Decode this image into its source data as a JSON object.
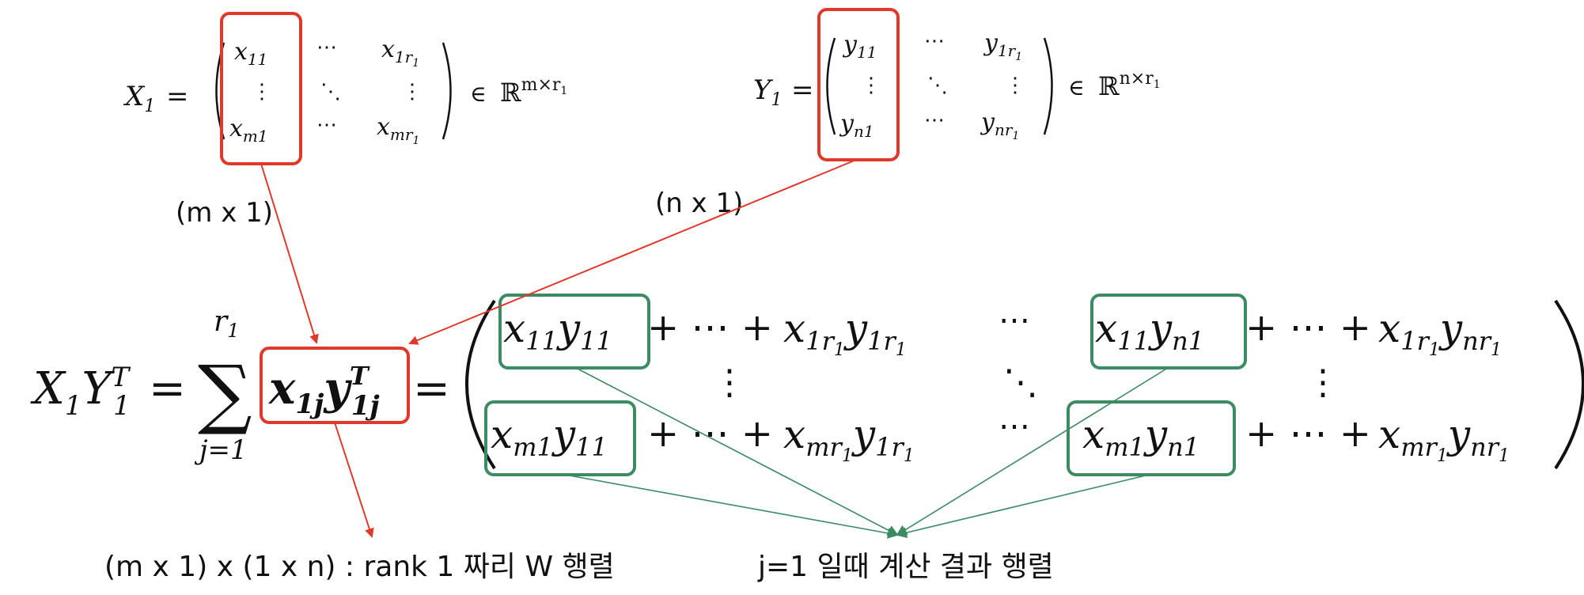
{
  "matrix_x": {
    "name": "X",
    "name_sub": "1",
    "equals": "=",
    "top_left": {
      "base": "x",
      "sub": "11"
    },
    "top_right": {
      "base": "x",
      "sub": "1r",
      "subsub": "1"
    },
    "bottom_left": {
      "base": "x",
      "sub": "m1"
    },
    "bottom_right": {
      "base": "x",
      "sub": "mr",
      "subsub": "1"
    },
    "hdots": "⋯",
    "vdots": "⋮",
    "ddots": "⋱",
    "member_of": "∈",
    "space": "ℝ",
    "space_sup": "m×r",
    "space_sup_sub": "1"
  },
  "matrix_y": {
    "name": "Y",
    "name_sub": "1",
    "equals": "=",
    "top_left": {
      "base": "y",
      "sub": "11"
    },
    "top_right": {
      "base": "y",
      "sub": "1r",
      "subsub": "1"
    },
    "bottom_left": {
      "base": "y",
      "sub": "n1"
    },
    "bottom_right": {
      "base": "y",
      "sub": "nr",
      "subsub": "1"
    },
    "hdots": "⋯",
    "vdots": "⋮",
    "ddots": "⋱",
    "member_of": "∈",
    "space": "ℝ",
    "space_sup": "n×r",
    "space_sup_sub": "1"
  },
  "labels": {
    "x_column_dim": "(m x 1)",
    "y_column_dim": "(n x 1)",
    "rank1_caption": "(m x 1) x (1 x n) : rank 1 짜리 W 행렬",
    "result_caption": "j=1 일때 계산 결과 행렬"
  },
  "main_equation": {
    "lhs_x": "X",
    "lhs_x_sub": "1",
    "lhs_y": "Y",
    "lhs_y_sub": "1",
    "lhs_y_sup": "T",
    "equals": "=",
    "sum_symbol": "∑",
    "sum_upper": "r",
    "sum_upper_sub": "1",
    "sum_lower": "j=1",
    "term_x": "x",
    "term_x_sub": "1j",
    "term_y": "y",
    "term_y_sup": "T",
    "term_y_sub": "1j",
    "equals2": "="
  },
  "result_matrix": {
    "r1_a": {
      "x": "x",
      "xs": "11",
      "y": "y",
      "ys": "11"
    },
    "r1_b": "+ ⋯ +",
    "r1_c": {
      "x": "x",
      "xs": "1r",
      "xss": "1",
      "y": "y",
      "ys": "1r",
      "yss": "1"
    },
    "r1_mid": "⋯",
    "r1_d": {
      "x": "x",
      "xs": "11",
      "y": "y",
      "ys": "n1"
    },
    "r1_e": "+ ⋯ +",
    "r1_f": {
      "x": "x",
      "xs": "1r",
      "xss": "1",
      "y": "y",
      "ys": "nr",
      "yss": "1"
    },
    "vdots": "⋮",
    "ddots": "⋱",
    "r2_a": {
      "x": "x",
      "xs": "m1",
      "y": "y",
      "ys": "11"
    },
    "r2_b": "+ ⋯ +",
    "r2_c": {
      "x": "x",
      "xs": "mr",
      "xss": "1",
      "y": "y",
      "ys": "1r",
      "yss": "1"
    },
    "r2_mid": "⋯",
    "r2_d": {
      "x": "x",
      "xs": "m1",
      "y": "y",
      "ys": "n1"
    },
    "r2_e": "+ ⋯ +",
    "r2_f": {
      "x": "x",
      "xs": "mr",
      "xss": "1",
      "y": "y",
      "ys": "nr",
      "yss": "1"
    }
  },
  "colors": {
    "highlight_red": "#e0392b",
    "highlight_green": "#3d8b63",
    "text": "#111111"
  }
}
